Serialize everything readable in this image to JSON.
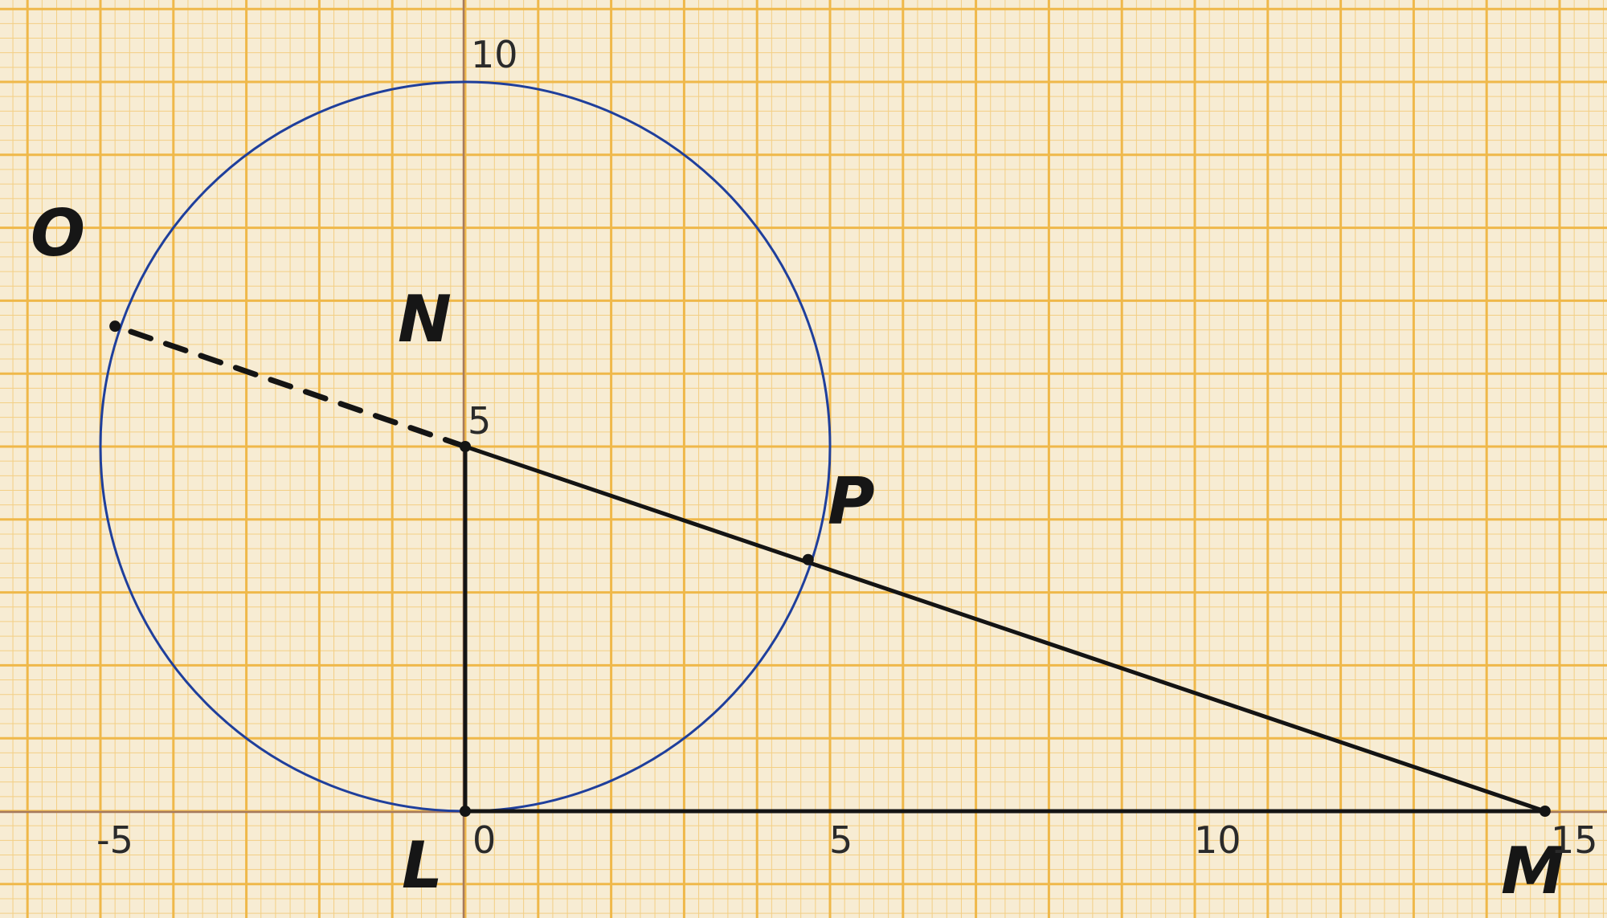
{
  "diagram": {
    "colors": {
      "paper": "#f7ecd3",
      "grid_minor": "#f3cf84",
      "grid_major": "#efb84a",
      "axis": "#a67a5e",
      "circle": "#1f3f9c",
      "ink": "#141414"
    },
    "axis_labels": {
      "x_neg5": "-5",
      "x_0": "0",
      "x_5": "5",
      "x_10": "10",
      "x_15": "15",
      "y_5": "5",
      "y_10": "10"
    },
    "points": {
      "L": {
        "label": "L",
        "x": 0,
        "y": 0
      },
      "M": {
        "label": "M",
        "x": 14.8,
        "y": 0
      },
      "N": {
        "label": "N",
        "x": 0,
        "y": 5
      },
      "O": {
        "label": "O",
        "x": -4.8,
        "y": 6.65
      },
      "P": {
        "label": "P",
        "x": 4.7,
        "y": 3.45
      }
    },
    "circle": {
      "center": "N",
      "radius": 5
    },
    "segments": [
      {
        "from": "L",
        "to": "M",
        "style": "solid"
      },
      {
        "from": "L",
        "to": "N",
        "style": "solid"
      },
      {
        "from": "N",
        "to": "M",
        "style": "solid"
      },
      {
        "from": "N",
        "to": "O",
        "style": "dashed"
      }
    ]
  }
}
